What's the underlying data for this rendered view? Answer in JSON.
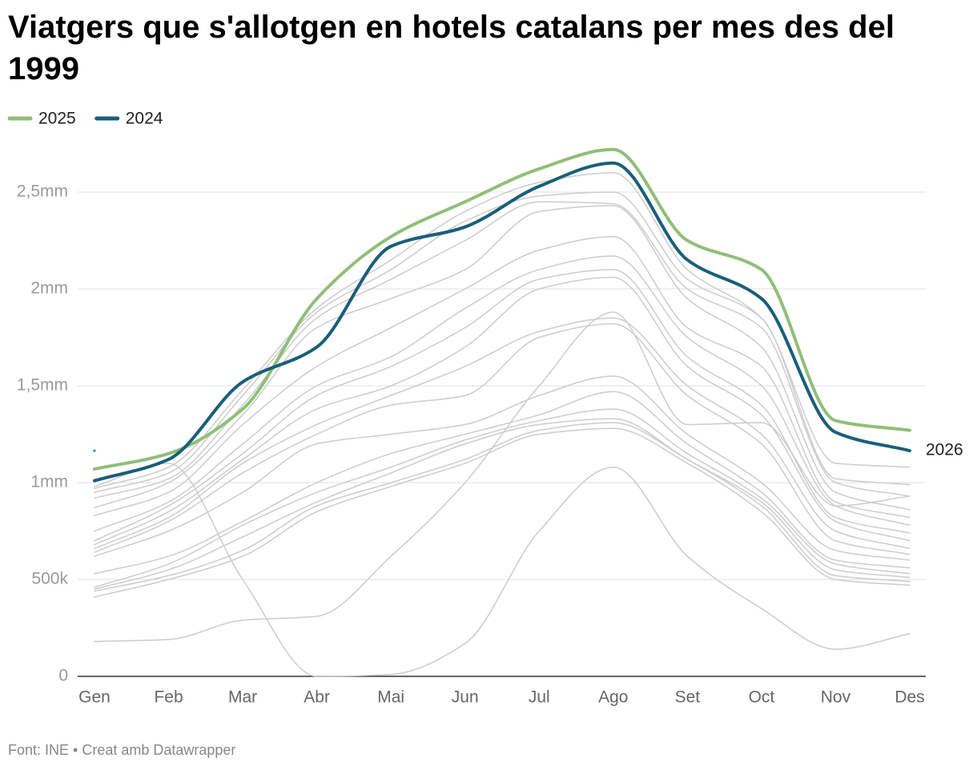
{
  "chart_data": {
    "type": "line",
    "title": "Viatgers que s'allotgen en hotels catalans per mes des del 1999",
    "source": "Font: INE • Creat amb Datawrapper",
    "categories": [
      "Gen",
      "Feb",
      "Mar",
      "Abr",
      "Mai",
      "Jun",
      "Jul",
      "Ago",
      "Set",
      "Oct",
      "Nov",
      "Des"
    ],
    "ylim": [
      0,
      2750000
    ],
    "yticks": [
      0,
      {
        "value": 500000,
        "label": "500k"
      },
      {
        "value": 1000000,
        "label": "1mm"
      },
      {
        "value": 1500000,
        "label": "1,5mm"
      },
      {
        "value": 2000000,
        "label": "2mm"
      },
      {
        "value": 2500000,
        "label": "2,5mm"
      }
    ],
    "grid": true,
    "series": [
      {
        "color": "#cccccc",
        "values": [
          180000,
          190000,
          290000,
          310000,
          620000,
          1000000,
          1500000,
          1880000,
          1300000,
          1310000,
          880000,
          930000
        ]
      },
      {
        "color": "#cccccc",
        "values": [
          980000,
          1100000,
          500000,
          0,
          10000,
          170000,
          750000,
          1080000,
          620000,
          350000,
          140000,
          220000
        ]
      },
      {
        "color": "#cccccc",
        "values": [
          410000,
          500000,
          620000,
          850000,
          980000,
          1100000,
          1250000,
          1280000,
          1100000,
          850000,
          500000,
          470000
        ]
      },
      {
        "color": "#cccccc",
        "values": [
          440000,
          520000,
          650000,
          880000,
          1000000,
          1120000,
          1270000,
          1310000,
          1120000,
          880000,
          520000,
          490000
        ]
      },
      {
        "color": "#cccccc",
        "values": [
          450000,
          550000,
          720000,
          900000,
          1050000,
          1200000,
          1300000,
          1330000,
          1120000,
          900000,
          550000,
          510000
        ]
      },
      {
        "color": "#cccccc",
        "values": [
          460000,
          580000,
          780000,
          950000,
          1080000,
          1220000,
          1320000,
          1380000,
          1150000,
          920000,
          580000,
          530000
        ]
      },
      {
        "color": "#cccccc",
        "values": [
          530000,
          620000,
          800000,
          1000000,
          1150000,
          1250000,
          1350000,
          1470000,
          1200000,
          950000,
          600000,
          560000
        ]
      },
      {
        "color": "#cccccc",
        "values": [
          620000,
          750000,
          950000,
          1200000,
          1250000,
          1300000,
          1450000,
          1550000,
          1250000,
          1000000,
          650000,
          600000
        ]
      },
      {
        "color": "#cccccc",
        "values": [
          640000,
          800000,
          1050000,
          1250000,
          1400000,
          1450000,
          1750000,
          1820000,
          1450000,
          1200000,
          700000,
          630000
        ]
      },
      {
        "color": "#cccccc",
        "values": [
          660000,
          820000,
          1100000,
          1300000,
          1450000,
          1600000,
          1780000,
          1850000,
          1500000,
          1250000,
          750000,
          660000
        ]
      },
      {
        "color": "#cccccc",
        "values": [
          680000,
          850000,
          1120000,
          1380000,
          1500000,
          1700000,
          2000000,
          2060000,
          1600000,
          1350000,
          800000,
          700000
        ]
      },
      {
        "color": "#cccccc",
        "values": [
          700000,
          880000,
          1150000,
          1450000,
          1600000,
          1800000,
          2050000,
          2100000,
          1650000,
          1400000,
          820000,
          740000
        ]
      },
      {
        "color": "#cccccc",
        "values": [
          750000,
          900000,
          1200000,
          1500000,
          1650000,
          1900000,
          2100000,
          2170000,
          1750000,
          1500000,
          880000,
          780000
        ]
      },
      {
        "color": "#cccccc",
        "values": [
          830000,
          950000,
          1300000,
          1600000,
          1800000,
          2000000,
          2200000,
          2270000,
          1800000,
          1600000,
          900000,
          820000
        ]
      },
      {
        "color": "#cccccc",
        "values": [
          870000,
          1000000,
          1350000,
          1800000,
          1950000,
          2100000,
          2400000,
          2430000,
          1950000,
          1700000,
          950000,
          860000
        ]
      },
      {
        "color": "#cccccc",
        "values": [
          920000,
          1020000,
          1400000,
          1850000,
          2050000,
          2250000,
          2450000,
          2440000,
          2000000,
          1800000,
          1000000,
          930000
        ]
      },
      {
        "color": "#cccccc",
        "values": [
          950000,
          1050000,
          1450000,
          1880000,
          2100000,
          2350000,
          2480000,
          2500000,
          2050000,
          1850000,
          1020000,
          990000
        ]
      },
      {
        "color": "#cccccc",
        "values": [
          970000,
          1080000,
          1480000,
          1900000,
          2150000,
          2400000,
          2550000,
          2600000,
          2100000,
          1850000,
          1100000,
          1080000
        ]
      },
      {
        "name": "2025",
        "color": "#8fbf78",
        "values": [
          1070000,
          1150000,
          1380000,
          1950000,
          2270000,
          2450000,
          2620000,
          2720000,
          2250000,
          2100000,
          1320000,
          1270000
        ]
      },
      {
        "name": "2024",
        "color": "#1a5e7a",
        "values": [
          1010000,
          1120000,
          1520000,
          1700000,
          2220000,
          2320000,
          2530000,
          2650000,
          2150000,
          1950000,
          1260000,
          1165000
        ]
      },
      {
        "name": "2026",
        "color": "#1d9bd1",
        "end_label": true,
        "values": [
          1165000,
          null,
          null,
          null,
          null,
          null,
          null,
          null,
          null,
          null,
          null,
          null
        ]
      }
    ]
  }
}
